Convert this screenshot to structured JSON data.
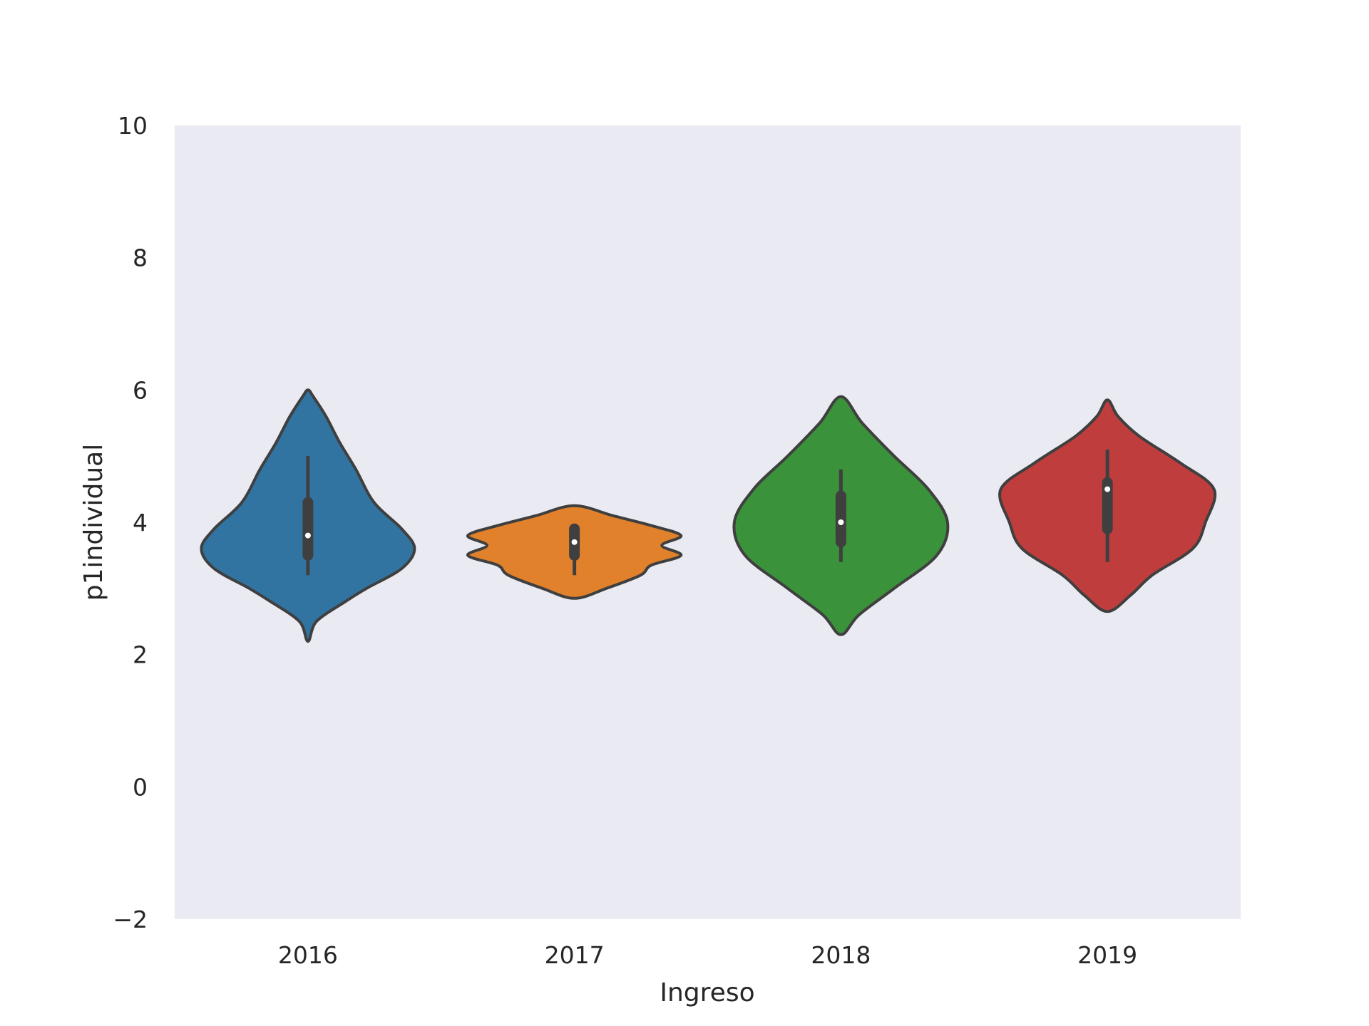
{
  "chart_data": {
    "type": "violin",
    "title": "",
    "xlabel": "Ingreso",
    "ylabel": "p1individual",
    "ylim": [
      -2,
      10
    ],
    "yticks": [
      "−2",
      "0",
      "2",
      "4",
      "6",
      "8",
      "10"
    ],
    "ytick_values": [
      -2,
      0,
      2,
      4,
      6,
      8,
      10
    ],
    "grid": false,
    "background": "#eaeaf2",
    "categories": [
      "2016",
      "2017",
      "2018",
      "2019"
    ],
    "violins": [
      {
        "category": "2016",
        "color": "#3274a1",
        "min": 3.2,
        "q1": 3.5,
        "median": 3.8,
        "q3": 4.3,
        "max": 5.0,
        "profile": [
          [
            2.2,
            0.0
          ],
          [
            2.5,
            0.08
          ],
          [
            2.8,
            0.35
          ],
          [
            3.0,
            0.55
          ],
          [
            3.3,
            0.88
          ],
          [
            3.6,
            1.0
          ],
          [
            3.9,
            0.88
          ],
          [
            4.3,
            0.62
          ],
          [
            4.8,
            0.45
          ],
          [
            5.2,
            0.3
          ],
          [
            5.6,
            0.17
          ],
          [
            5.9,
            0.05
          ],
          [
            6.0,
            0.0
          ]
        ]
      },
      {
        "category": "2017",
        "color": "#e1812c",
        "min": 3.2,
        "q1": 3.5,
        "median": 3.7,
        "q3": 3.9,
        "max": 3.9,
        "profile": [
          [
            2.85,
            0.0
          ],
          [
            3.0,
            0.3
          ],
          [
            3.2,
            0.62
          ],
          [
            3.35,
            0.72
          ],
          [
            3.5,
            1.0
          ],
          [
            3.65,
            0.82
          ],
          [
            3.8,
            1.0
          ],
          [
            3.95,
            0.72
          ],
          [
            4.1,
            0.36
          ],
          [
            4.25,
            0.0
          ]
        ]
      },
      {
        "category": "2018",
        "color": "#3a923a",
        "min": 3.4,
        "q1": 3.7,
        "median": 4.0,
        "q3": 4.4,
        "max": 4.8,
        "profile": [
          [
            2.3,
            0.0
          ],
          [
            2.6,
            0.17
          ],
          [
            3.0,
            0.5
          ],
          [
            3.5,
            0.9
          ],
          [
            4.0,
            1.0
          ],
          [
            4.5,
            0.82
          ],
          [
            5.0,
            0.5
          ],
          [
            5.5,
            0.2
          ],
          [
            5.9,
            0.0
          ]
        ]
      },
      {
        "category": "2019",
        "color": "#c03d3e",
        "min": 3.4,
        "q1": 3.9,
        "median": 4.5,
        "q3": 4.6,
        "max": 5.1,
        "profile": [
          [
            2.65,
            0.0
          ],
          [
            2.9,
            0.22
          ],
          [
            3.2,
            0.42
          ],
          [
            3.6,
            0.8
          ],
          [
            4.0,
            0.92
          ],
          [
            4.5,
            1.0
          ],
          [
            4.9,
            0.68
          ],
          [
            5.3,
            0.3
          ],
          [
            5.6,
            0.1
          ],
          [
            5.85,
            0.0
          ]
        ]
      }
    ]
  }
}
